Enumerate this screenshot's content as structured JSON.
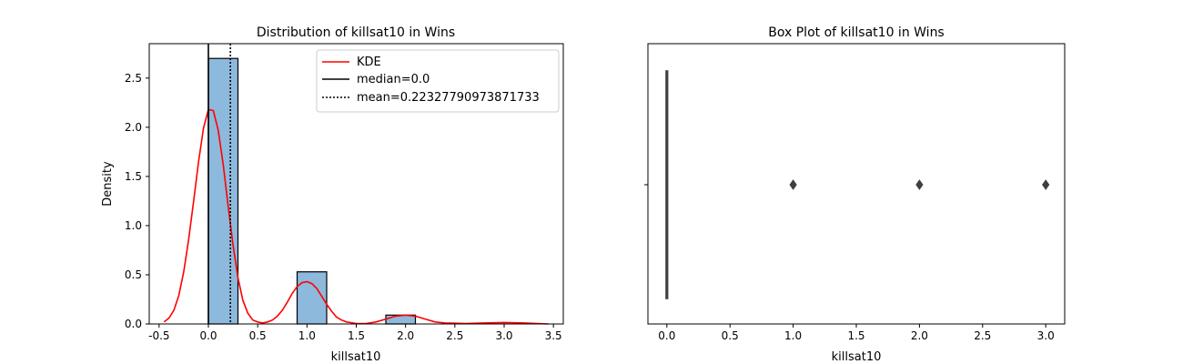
{
  "chart_data": [
    {
      "type": "bar",
      "title": "Distribution of killsat10 in Wins",
      "xlabel": "killsat10",
      "ylabel": "Density",
      "xlim": [
        -0.6,
        3.6
      ],
      "ylim": [
        0,
        2.85
      ],
      "xticks": [
        "-0.5",
        "0.0",
        "0.5",
        "1.0",
        "1.5",
        "2.0",
        "2.5",
        "3.0",
        "3.5"
      ],
      "yticks": [
        "0.0",
        "0.5",
        "1.0",
        "1.5",
        "2.0",
        "2.5"
      ],
      "bins": [
        {
          "x0": 0.0,
          "x1": 0.3,
          "density": 2.7
        },
        {
          "x0": 0.9,
          "x1": 1.2,
          "density": 0.53
        },
        {
          "x0": 1.8,
          "x1": 2.1,
          "density": 0.09
        }
      ],
      "bar_color": "#8db9dc",
      "kde": {
        "name": "KDE",
        "color": "#ff0000",
        "points": [
          [
            -0.45,
            0.02
          ],
          [
            -0.4,
            0.06
          ],
          [
            -0.35,
            0.14
          ],
          [
            -0.3,
            0.29
          ],
          [
            -0.25,
            0.53
          ],
          [
            -0.2,
            0.86
          ],
          [
            -0.15,
            1.25
          ],
          [
            -0.1,
            1.65
          ],
          [
            -0.05,
            1.99
          ],
          [
            0.0,
            2.18
          ],
          [
            0.05,
            2.17
          ],
          [
            0.1,
            1.97
          ],
          [
            0.15,
            1.62
          ],
          [
            0.2,
            1.2
          ],
          [
            0.25,
            0.8
          ],
          [
            0.3,
            0.47
          ],
          [
            0.35,
            0.24
          ],
          [
            0.4,
            0.11
          ],
          [
            0.45,
            0.04
          ],
          [
            0.5,
            0.02
          ],
          [
            0.55,
            0.01
          ],
          [
            0.6,
            0.02
          ],
          [
            0.65,
            0.04
          ],
          [
            0.7,
            0.08
          ],
          [
            0.75,
            0.14
          ],
          [
            0.8,
            0.22
          ],
          [
            0.85,
            0.31
          ],
          [
            0.9,
            0.38
          ],
          [
            0.95,
            0.42
          ],
          [
            1.0,
            0.43
          ],
          [
            1.05,
            0.41
          ],
          [
            1.1,
            0.36
          ],
          [
            1.15,
            0.28
          ],
          [
            1.2,
            0.2
          ],
          [
            1.25,
            0.13
          ],
          [
            1.3,
            0.07
          ],
          [
            1.35,
            0.04
          ],
          [
            1.4,
            0.02
          ],
          [
            1.5,
            0.005
          ],
          [
            1.6,
            0.005
          ],
          [
            1.7,
            0.02
          ],
          [
            1.8,
            0.05
          ],
          [
            1.9,
            0.08
          ],
          [
            2.0,
            0.09
          ],
          [
            2.1,
            0.08
          ],
          [
            2.2,
            0.05
          ],
          [
            2.3,
            0.02
          ],
          [
            2.4,
            0.01
          ],
          [
            2.6,
            0.005
          ],
          [
            2.8,
            0.01
          ],
          [
            3.0,
            0.015
          ],
          [
            3.2,
            0.01
          ],
          [
            3.45,
            0.0
          ]
        ]
      },
      "median": {
        "value": 0.0,
        "label": "median=0.0"
      },
      "mean": {
        "value": 0.22327790973871733,
        "label": "mean=0.22327790973871733"
      },
      "legend": {
        "position": "top-right",
        "entries": [
          "KDE",
          "median=0.0",
          "mean=0.22327790973871733"
        ]
      }
    },
    {
      "type": "box",
      "title": "Box Plot of killsat10 in Wins",
      "xlabel": "killsat10",
      "xlim": [
        -0.15,
        3.15
      ],
      "xticks": [
        "0.0",
        "0.5",
        "1.0",
        "1.5",
        "2.0",
        "2.5",
        "3.0"
      ],
      "box": {
        "min": 0.0,
        "q1": 0.0,
        "median": 0.0,
        "q3": 0.0,
        "max": 0.0
      },
      "outliers": [
        1.0,
        2.0,
        3.0
      ]
    }
  ]
}
